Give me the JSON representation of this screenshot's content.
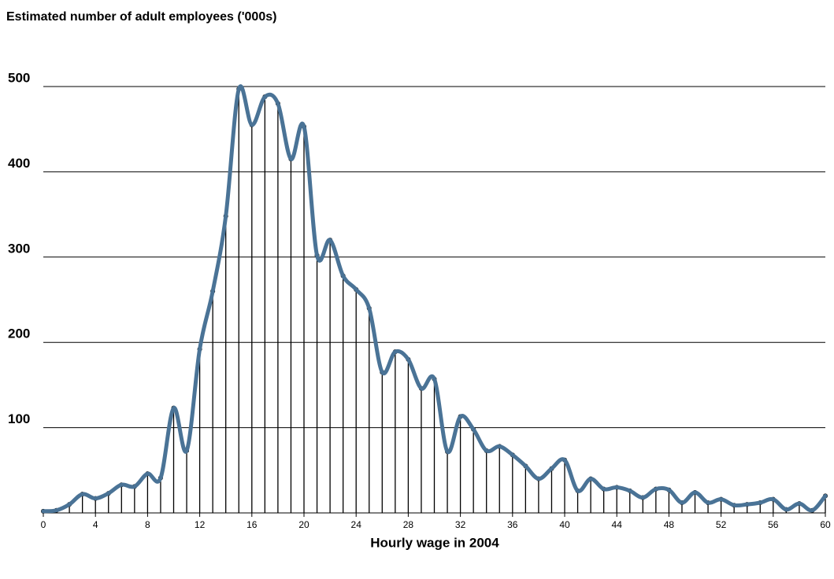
{
  "chart_data": {
    "type": "stem-line",
    "title": "Estimated number of adult employees ('000s)",
    "xlabel": "Hourly wage in 2004",
    "x": [
      0,
      1,
      2,
      3,
      4,
      5,
      6,
      7,
      8,
      9,
      10,
      11,
      12,
      13,
      14,
      15,
      16,
      17,
      18,
      19,
      20,
      21,
      22,
      23,
      24,
      25,
      26,
      27,
      28,
      29,
      30,
      31,
      32,
      33,
      34,
      35,
      36,
      37,
      38,
      39,
      40,
      41,
      42,
      43,
      44,
      45,
      46,
      47,
      48,
      49,
      50,
      51,
      52,
      53,
      54,
      55,
      56,
      57,
      58,
      59,
      60
    ],
    "values": [
      2,
      3,
      10,
      22,
      17,
      23,
      33,
      31,
      46,
      41,
      123,
      73,
      192,
      260,
      348,
      497,
      455,
      488,
      480,
      415,
      453,
      302,
      320,
      278,
      262,
      240,
      165,
      189,
      180,
      146,
      157,
      72,
      113,
      98,
      73,
      78,
      68,
      55,
      40,
      52,
      62,
      26,
      40,
      28,
      30,
      26,
      18,
      28,
      27,
      12,
      24,
      12,
      16,
      9,
      10,
      12,
      16,
      4,
      11,
      3,
      20
    ],
    "color": "#4a7396",
    "xlim": [
      0,
      60
    ],
    "xticks": [
      0,
      4,
      8,
      12,
      16,
      20,
      24,
      28,
      32,
      36,
      40,
      44,
      48,
      52,
      56,
      60
    ],
    "ylim": [
      0,
      500
    ],
    "yticks": [
      100,
      200,
      300,
      400,
      500
    ],
    "grid": true
  }
}
